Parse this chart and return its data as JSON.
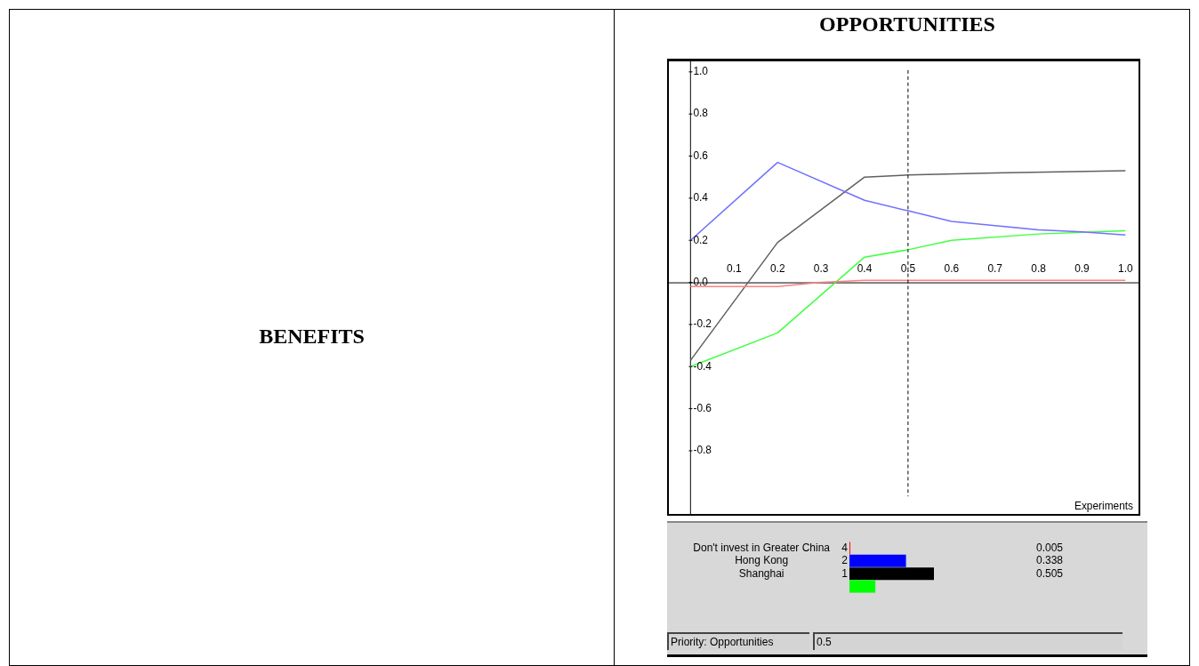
{
  "chart_data": [
    {
      "type": "other",
      "title": "BENEFITS"
    },
    {
      "type": "line",
      "title": "OPPORTUNITIES",
      "xlabel": "Experiments",
      "xlim": [
        -0.05,
        1.03
      ],
      "ylim": [
        -1.1,
        1.05
      ],
      "xticks": [
        0.1,
        0.2,
        0.3,
        0.4,
        0.5,
        0.6,
        0.7,
        0.8,
        0.9,
        {
          "value": 1,
          "label": "1.0"
        }
      ],
      "yticks": [
        {
          "value": 1,
          "label": "1.0"
        },
        0.8,
        0.6,
        0.4,
        0.2,
        {
          "value": 0,
          "label": "0.0"
        },
        -0.2,
        -0.4,
        -0.6,
        -0.8
      ],
      "grid": false,
      "legend": false,
      "marker": "none",
      "line_style": "solid",
      "series": [
        {
          "color": "#ff8080",
          "x": [
            0,
            0.2,
            0.3,
            0.4,
            1.0
          ],
          "values": [
            -0.02,
            -0.02,
            0.0,
            0.01,
            0.01
          ]
        },
        {
          "color": "#7070ff",
          "x": [
            0,
            0.2,
            0.4,
            0.5,
            0.6,
            0.7,
            0.8,
            0.9,
            1.0
          ],
          "values": [
            0.2,
            0.57,
            0.39,
            0.34,
            0.29,
            0.27,
            0.25,
            0.24,
            0.225
          ]
        },
        {
          "color": "#606060",
          "x": [
            0,
            0.2,
            0.4,
            0.5,
            0.7,
            1.0
          ],
          "values": [
            -0.37,
            0.19,
            0.5,
            0.51,
            0.52,
            0.53
          ]
        },
        {
          "color": "#40ff40",
          "x": [
            0,
            0.2,
            0.4,
            0.5,
            0.6,
            0.8,
            1.0
          ],
          "values": [
            -0.4,
            -0.24,
            0.12,
            0.155,
            0.2,
            0.23,
            0.245
          ]
        }
      ],
      "ref_lines": [
        {
          "axis": "x",
          "value": 0.5,
          "line_style": "dashed",
          "color": "#000000"
        }
      ],
      "annotations": [
        "Priority: Opportunities",
        "0.5"
      ]
    },
    {
      "type": "bar",
      "orientation": "horizontal",
      "categories": [
        "Don't invest in Greater China",
        "Hong Kong",
        "Shanghai",
        null
      ],
      "values": [
        0.005,
        0.338,
        0.505,
        0.155
      ],
      "colors": [
        "#ff0000",
        "#0000ff",
        "#000000",
        "#00ff00"
      ],
      "value_labels": [
        "0.005",
        "0.338",
        "0.505",
        null
      ],
      "annotations": [
        "4",
        "2",
        "1"
      ]
    }
  ]
}
